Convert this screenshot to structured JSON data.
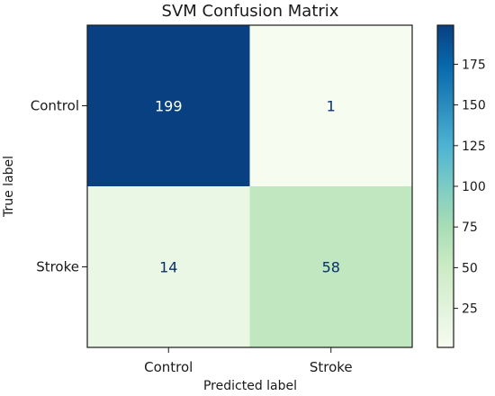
{
  "chart_data": {
    "type": "heatmap",
    "title": "SVM Confusion Matrix",
    "xlabel": "Predicted label",
    "ylabel": "True label",
    "x_categories": [
      "Control",
      "Stroke"
    ],
    "y_categories": [
      "Control",
      "Stroke"
    ],
    "matrix": [
      [
        199,
        1
      ],
      [
        14,
        58
      ]
    ],
    "colormap": "GnBu",
    "colorbar": {
      "min": 1,
      "max": 199,
      "ticks": [
        25,
        50,
        75,
        100,
        125,
        150,
        175
      ]
    },
    "grid": false,
    "colors": {
      "low": "#f7fcf0",
      "mid_low": "#ccebc5",
      "mid": "#7bccc4",
      "mid_high": "#2b8cbe",
      "high": "#08306b",
      "text_dark": "#08306b",
      "text_light": "#ffffff"
    }
  }
}
